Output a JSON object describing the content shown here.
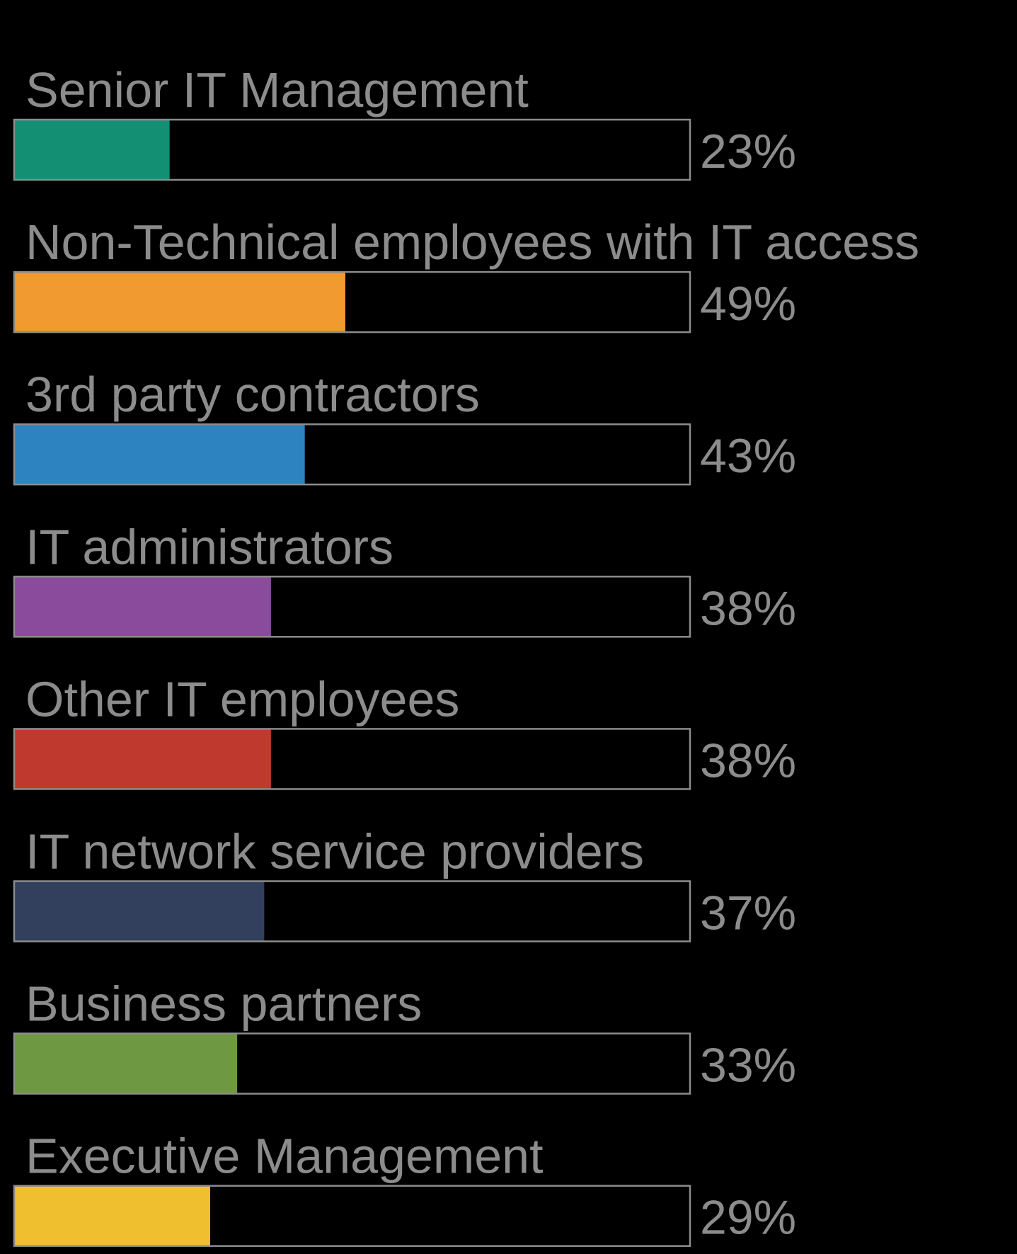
{
  "chart_data": {
    "type": "bar",
    "orientation": "horizontal",
    "categories": [
      "Senior IT Management",
      "Non-Technical employees with IT access",
      "3rd party contractors",
      "IT administrators",
      "Other IT employees",
      "IT network service providers",
      "Business partners",
      "Executive Management"
    ],
    "values": [
      23,
      49,
      43,
      38,
      38,
      37,
      33,
      29
    ],
    "value_labels": [
      "23%",
      "49%",
      "43%",
      "38%",
      "38%",
      "37%",
      "33%",
      "29%"
    ],
    "colors": [
      "#138f74",
      "#f09a30",
      "#2d83bf",
      "#8a4b9c",
      "#c0392f",
      "#323f5d",
      "#6f9842",
      "#f0bf2f"
    ],
    "xlim": [
      0,
      100
    ]
  }
}
